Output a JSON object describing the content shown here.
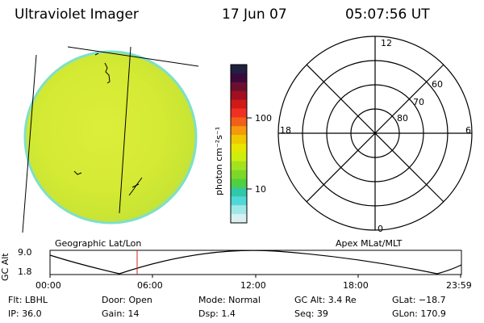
{
  "header": {
    "title": "Ultraviolet Imager",
    "date": "17 Jun 07",
    "time": "05:07:56 UT"
  },
  "colorbar": {
    "unit_label": "photon cm⁻²s⁻¹",
    "ticks": [
      "100",
      "10"
    ],
    "colors": [
      "#202040",
      "#3a0a3a",
      "#6a0f30",
      "#a01020",
      "#d01a1a",
      "#f03020",
      "#f06018",
      "#f59a0c",
      "#f0c800",
      "#e8e600",
      "#ccee10",
      "#a4e220",
      "#7cd828",
      "#50d040",
      "#30c8a8",
      "#50d8d8",
      "#a0e8e8",
      "#d8f0f0"
    ]
  },
  "image": {
    "disk_color": "#d8ec36",
    "rim_color": "#7ee0c8"
  },
  "polar": {
    "mlt_labels": [
      "12",
      "18",
      "6",
      "0"
    ],
    "mlat_labels": [
      "60",
      "70",
      "80"
    ]
  },
  "orbit": {
    "ylabel": "GC Alt",
    "ytick_high": "9.0",
    "ytick_low": "1.8",
    "left_title": "Geographic Lat/Lon",
    "right_title": "Apex MLat/MLT",
    "xticks": [
      "00:00",
      "06:00",
      "12:00",
      "18:00",
      "23:59"
    ],
    "marker_color": "#d02020"
  },
  "info": {
    "flt": "Flt: LBHL",
    "ip": "IP: 36.0",
    "door": "Door: Open",
    "gain": "Gain: 14",
    "mode": "Mode: Normal",
    "dsp": "Dsp:    1.4",
    "gcalt": "GC Alt: 3.4 Re",
    "seq": "Seq: 39",
    "glat": "GLat: −18.7",
    "glon": "GLon: 170.9"
  }
}
